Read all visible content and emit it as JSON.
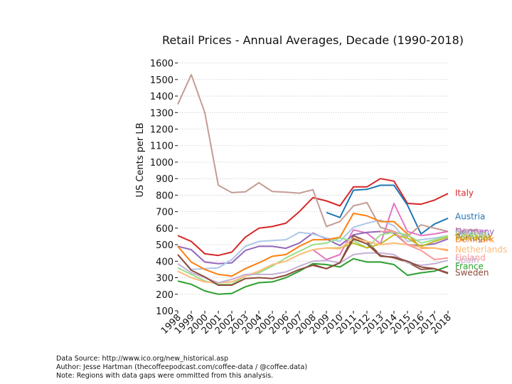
{
  "chart_data": {
    "type": "line",
    "title": "Retail Prices - Annual Averages, Decade (1990-2018)",
    "xlabel": "",
    "ylabel": "US Cents per LB",
    "ylim": [
      100,
      1650
    ],
    "xlim": [
      1998,
      2018
    ],
    "yticks": [
      100,
      200,
      300,
      400,
      500,
      600,
      700,
      800,
      900,
      1000,
      1100,
      1200,
      1300,
      1400,
      1500,
      1600
    ],
    "x": [
      1998,
      1999,
      2000,
      2001,
      2002,
      2003,
      2004,
      2005,
      2006,
      2007,
      2008,
      2009,
      2010,
      2011,
      2012,
      2013,
      2014,
      2015,
      2016,
      2017,
      2018
    ],
    "grid": "horizontal dotted",
    "legend": "right, labels at line ends",
    "series": [
      {
        "name": "Italy",
        "color": "#d62728",
        "values": [
          555,
          520,
          445,
          435,
          455,
          545,
          600,
          610,
          630,
          700,
          785,
          765,
          735,
          850,
          850,
          900,
          885,
          750,
          745,
          770,
          810
        ]
      },
      {
        "name": "Austria",
        "color": "#1f77b4",
        "values": [
          null,
          null,
          null,
          null,
          null,
          null,
          null,
          null,
          null,
          null,
          null,
          695,
          665,
          830,
          835,
          860,
          860,
          740,
          565,
          625,
          660
        ]
      },
      {
        "name": "Japan",
        "color": "#c49c94",
        "values": [
          1350,
          1530,
          1300,
          860,
          815,
          820,
          875,
          822,
          818,
          812,
          833,
          610,
          640,
          735,
          755,
          605,
          580,
          550,
          620,
          600,
          580
        ]
      },
      {
        "name": "Norway",
        "color": "#e377c2",
        "values": [
          null,
          null,
          null,
          null,
          null,
          null,
          null,
          null,
          null,
          null,
          470,
          410,
          440,
          590,
          570,
          505,
          750,
          580,
          555,
          565,
          580
        ]
      },
      {
        "name": "Germany",
        "color": "#9467bd",
        "values": [
          490,
          470,
          395,
          385,
          390,
          465,
          490,
          490,
          478,
          510,
          570,
          535,
          495,
          560,
          575,
          580,
          570,
          500,
          495,
          505,
          535
        ]
      },
      {
        "name": "Belgium",
        "color": "#aec7e8",
        "values": [
          440,
          350,
          355,
          360,
          410,
          490,
          520,
          525,
          530,
          575,
          565,
          540,
          520,
          605,
          630,
          650,
          615,
          520,
          530,
          540,
          555
        ]
      },
      {
        "name": "Portugal",
        "color": "#8c564b",
        "values": [
          null,
          null,
          null,
          null,
          null,
          null,
          null,
          null,
          null,
          null,
          380,
          355,
          390,
          555,
          520,
          435,
          420,
          395,
          350,
          355,
          325
        ]
      },
      {
        "name": "Denmark",
        "color": "#ff7f0e",
        "values": [
          490,
          395,
          350,
          320,
          310,
          355,
          390,
          430,
          440,
          490,
          530,
          530,
          545,
          690,
          675,
          640,
          640,
          565,
          480,
          480,
          465
        ]
      },
      {
        "name": "Cyprus",
        "color": "#98df8a",
        "values": [
          360,
          320,
          280,
          260,
          260,
          310,
          330,
          370,
          420,
          460,
          500,
          510,
          540,
          525,
          480,
          560,
          575,
          560,
          510,
          530,
          555
        ]
      },
      {
        "name": "Slovakia",
        "color": "#bcbd22",
        "values": [
          null,
          null,
          null,
          null,
          null,
          null,
          null,
          null,
          null,
          null,
          null,
          480,
          480,
          510,
          480,
          505,
          560,
          540,
          490,
          520,
          545
        ]
      },
      {
        "name": "Netherlands",
        "color": "#ffbb78",
        "values": [
          340,
          300,
          275,
          270,
          275,
          310,
          340,
          380,
          400,
          440,
          470,
          480,
          475,
          540,
          520,
          500,
          510,
          500,
          485,
          480,
          470
        ]
      },
      {
        "name": "Finland",
        "color": "#ff9896",
        "values": [
          null,
          null,
          null,
          null,
          null,
          null,
          null,
          null,
          null,
          null,
          null,
          null,
          null,
          null,
          null,
          580,
          580,
          500,
          465,
          410,
          420
        ]
      },
      {
        "name": "Spain",
        "color": "#c5b0d5",
        "values": [
          385,
          330,
          300,
          270,
          290,
          320,
          320,
          320,
          335,
          370,
          400,
          405,
          390,
          440,
          450,
          450,
          440,
          390,
          375,
          385,
          405
        ]
      },
      {
        "name": "France",
        "color": "#2ca02c",
        "values": [
          280,
          260,
          220,
          200,
          205,
          245,
          270,
          275,
          300,
          340,
          385,
          380,
          365,
          415,
          395,
          395,
          380,
          315,
          330,
          340,
          370
        ]
      },
      {
        "name": "Sweden",
        "color": "#8c4b3c",
        "values": [
          440,
          345,
          305,
          255,
          255,
          295,
          300,
          295,
          315,
          350,
          375,
          355,
          390,
          535,
          505,
          430,
          425,
          400,
          365,
          355,
          330
        ]
      }
    ],
    "end_labels": [
      {
        "text": "Italy",
        "color": "#d62728",
        "at": 813
      },
      {
        "text": "Austria",
        "color": "#1f77b4",
        "at": 670
      },
      {
        "text": "Japan",
        "color": "#c49c94",
        "at": 585
      },
      {
        "text": "Norway",
        "color": "#e377c2",
        "at": 580
      },
      {
        "text": "Germany",
        "color": "#9467bd",
        "at": 578
      },
      {
        "text": "Belgium",
        "color": "#aec7e8",
        "at": 562
      },
      {
        "text": "Portugal",
        "color": "#8c564b",
        "at": 542
      },
      {
        "text": "Denmark",
        "color": "#ff7f0e",
        "at": 532
      },
      {
        "text": "Cyprus",
        "color": "#98df8a",
        "at": 560
      },
      {
        "text": "Slovakia",
        "color": "#bcbd22",
        "at": 548
      },
      {
        "text": "Netherlands",
        "color": "#ffbb78",
        "at": 470
      },
      {
        "text": "Finland",
        "color": "#ff9896",
        "at": 420
      },
      {
        "text": "Spain",
        "color": "#c5b0d5",
        "at": 405
      },
      {
        "text": "France",
        "color": "#2ca02c",
        "at": 370
      },
      {
        "text": "Sweden",
        "color": "#8c4b3c",
        "at": 330
      }
    ]
  },
  "footer": {
    "source": "Data Source: http://www.ico.org/new_historical.asp",
    "author": "Author: Jesse Hartman (thecoffeepodcast.com/coffee-data / @coffee.data)",
    "note": "Note: Regions with data gaps were ommitted from this analysis."
  }
}
